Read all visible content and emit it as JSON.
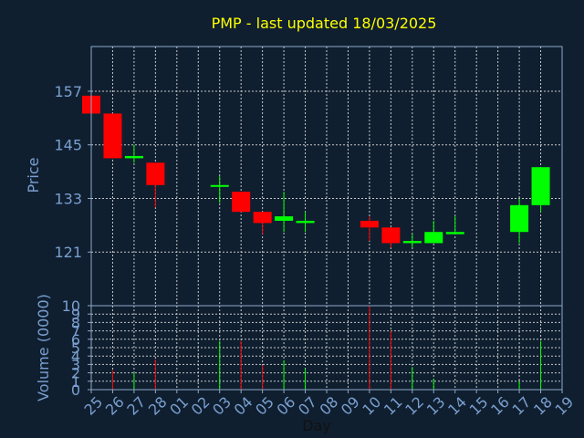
{
  "colors": {
    "background": "#0f1f30",
    "title": "#ffff00",
    "axis_text": "#7a9fcf",
    "frame": "#8fa8c8",
    "grid": "#c8c8c8",
    "up": "#00ff00",
    "down": "#ff0000"
  },
  "chart_data": [
    {
      "type": "candlestick",
      "title": "PMP - last updated 18/03/2025",
      "ylabel": "Price",
      "ylim": [
        109,
        167
      ],
      "y_ticks": [
        121,
        133,
        145,
        157
      ],
      "grid": true,
      "x_categories": [
        "25",
        "26",
        "27",
        "28",
        "01",
        "02",
        "03",
        "04",
        "05",
        "06",
        "07",
        "08",
        "09",
        "10",
        "11",
        "12",
        "13",
        "14",
        "15",
        "16",
        "17",
        "18",
        "19"
      ],
      "candles": [
        {
          "day": "25",
          "open": 156,
          "high": 157,
          "low": 152,
          "close": 152
        },
        {
          "day": "26",
          "open": 152,
          "high": 152,
          "low": 142,
          "close": 142
        },
        {
          "day": "27",
          "open": 142,
          "high": 145,
          "low": 141,
          "close": 142.5
        },
        {
          "day": "28",
          "open": 141,
          "high": 141,
          "low": 131,
          "close": 136
        },
        {
          "day": "03",
          "open": 136,
          "high": 138,
          "low": 132,
          "close": 136
        },
        {
          "day": "04",
          "open": 134.5,
          "high": 134.5,
          "low": 130,
          "close": 130
        },
        {
          "day": "05",
          "open": 130,
          "high": 130,
          "low": 125,
          "close": 127.5
        },
        {
          "day": "06",
          "open": 128,
          "high": 134.5,
          "low": 125.5,
          "close": 129
        },
        {
          "day": "07",
          "open": 127.5,
          "high": 130,
          "low": 125.5,
          "close": 128
        },
        {
          "day": "10",
          "open": 128,
          "high": 129,
          "low": 123.5,
          "close": 126.5
        },
        {
          "day": "11",
          "open": 126.5,
          "high": 126.5,
          "low": 122,
          "close": 123
        },
        {
          "day": "12",
          "open": 123,
          "high": 125,
          "low": 122,
          "close": 123.5
        },
        {
          "day": "13",
          "open": 123,
          "high": 128,
          "low": 123,
          "close": 125.5
        },
        {
          "day": "14",
          "open": 125,
          "high": 129,
          "low": 125,
          "close": 125.5
        },
        {
          "day": "17",
          "open": 125.5,
          "high": 133,
          "low": 123,
          "close": 131.5
        },
        {
          "day": "18",
          "open": 131.5,
          "high": 140,
          "low": 130,
          "close": 140
        }
      ]
    },
    {
      "type": "bar",
      "ylabel": "Volume (0000)",
      "xlabel": "Day",
      "ylim": [
        0,
        10
      ],
      "y_ticks": [
        0,
        1,
        2,
        3,
        4,
        5,
        6,
        7,
        8,
        9,
        10
      ],
      "x_tick_labels": [
        "25",
        "26",
        "27",
        "28",
        "01",
        "02",
        "03",
        "04",
        "05",
        "06",
        "07",
        "08",
        "09",
        "10",
        "11",
        "12",
        "13",
        "14",
        "15",
        "16",
        "17",
        "18",
        "19"
      ],
      "bars": [
        {
          "day": "26",
          "value": 2.3,
          "direction": "down"
        },
        {
          "day": "27",
          "value": 2.0,
          "direction": "up"
        },
        {
          "day": "28",
          "value": 3.6,
          "direction": "down"
        },
        {
          "day": "03",
          "value": 5.8,
          "direction": "up"
        },
        {
          "day": "04",
          "value": 5.8,
          "direction": "down"
        },
        {
          "day": "05",
          "value": 2.9,
          "direction": "down"
        },
        {
          "day": "06",
          "value": 3.5,
          "direction": "up"
        },
        {
          "day": "07",
          "value": 2.5,
          "direction": "up"
        },
        {
          "day": "10",
          "value": 10.0,
          "direction": "down"
        },
        {
          "day": "11",
          "value": 7.0,
          "direction": "down"
        },
        {
          "day": "12",
          "value": 2.7,
          "direction": "up"
        },
        {
          "day": "13",
          "value": 1.3,
          "direction": "up"
        },
        {
          "day": "17",
          "value": 1.0,
          "direction": "up"
        },
        {
          "day": "18",
          "value": 5.8,
          "direction": "up"
        }
      ]
    }
  ]
}
